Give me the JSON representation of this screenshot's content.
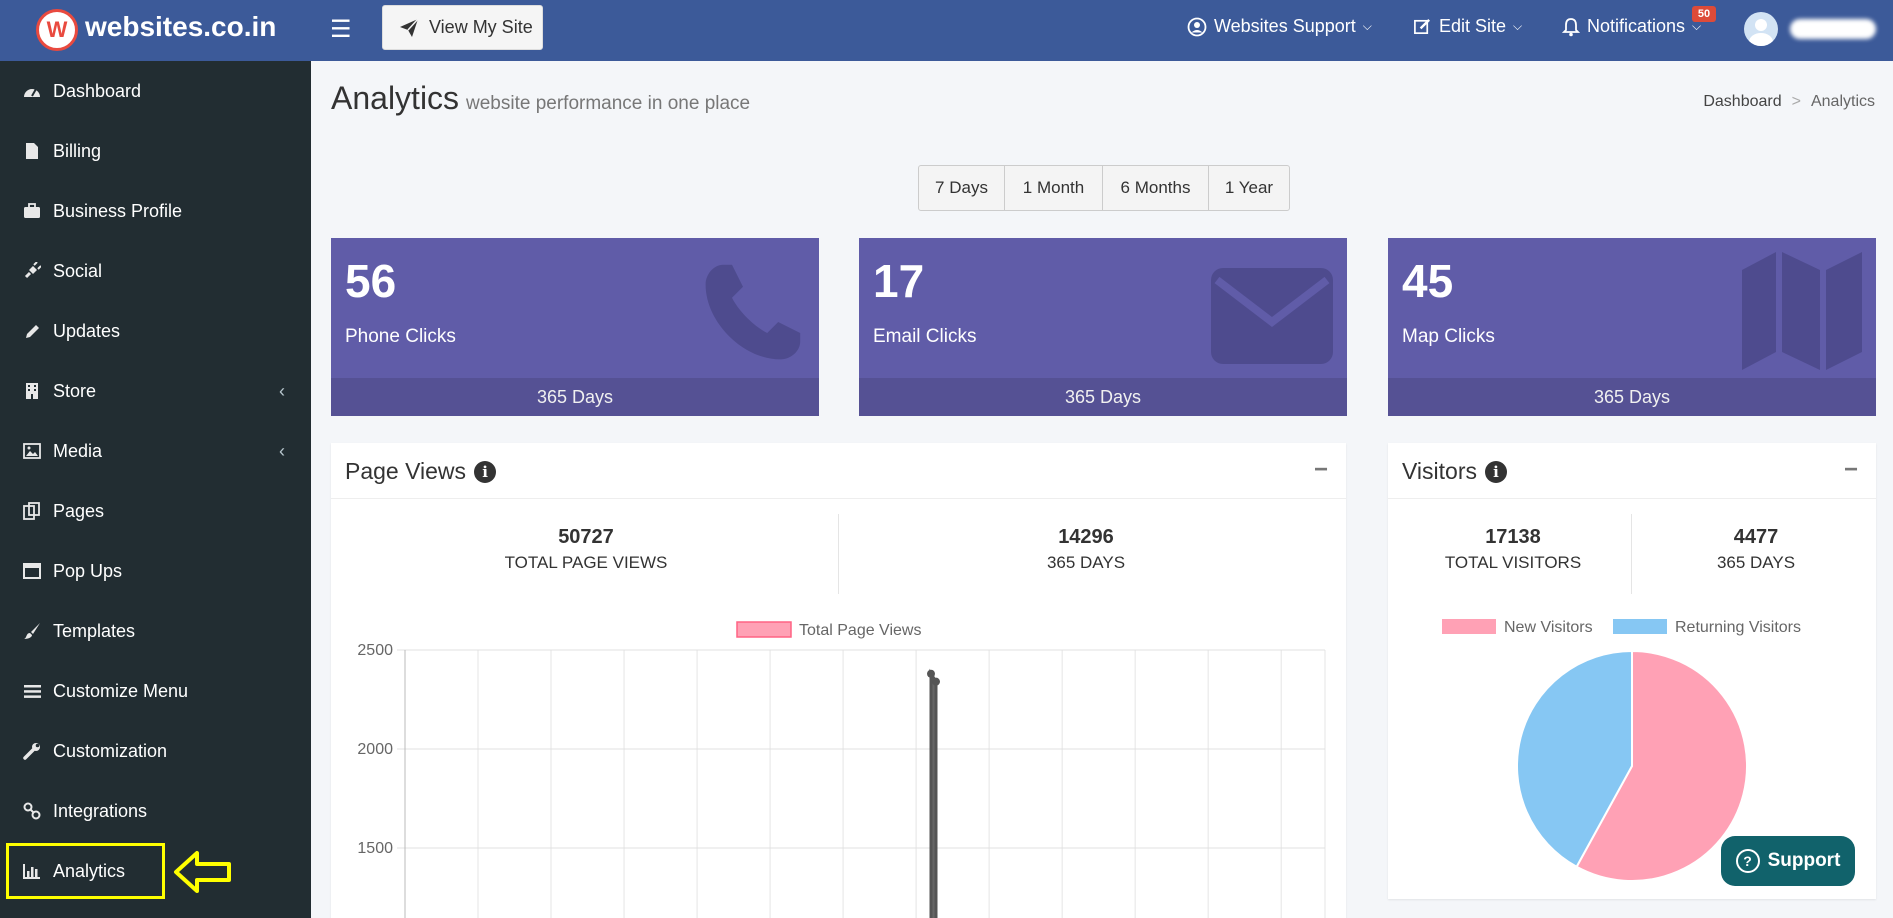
{
  "brand": {
    "name": "websites.co.in",
    "logo_letter": "W"
  },
  "header": {
    "view_site_label": "View My Site",
    "support_label": "Websites Support",
    "edit_label": "Edit Site",
    "notifications_label": "Notifications",
    "notifications_count": "50"
  },
  "sidebar": {
    "items": [
      {
        "label": "Dashboard",
        "icon": "dashboard-icon"
      },
      {
        "label": "Billing",
        "icon": "file-icon"
      },
      {
        "label": "Business Profile",
        "icon": "briefcase-icon"
      },
      {
        "label": "Social",
        "icon": "plug-icon"
      },
      {
        "label": "Updates",
        "icon": "pencil-icon"
      },
      {
        "label": "Store",
        "icon": "building-icon"
      },
      {
        "label": "Media",
        "icon": "image-icon"
      },
      {
        "label": "Pages",
        "icon": "pages-icon"
      },
      {
        "label": "Pop Ups",
        "icon": "window-icon"
      },
      {
        "label": "Templates",
        "icon": "paintbrush-icon"
      },
      {
        "label": "Customize Menu",
        "icon": "list-icon"
      },
      {
        "label": "Customization",
        "icon": "wrench-icon"
      },
      {
        "label": "Integrations",
        "icon": "link-icon"
      },
      {
        "label": "Analytics",
        "icon": "bar-chart-icon"
      }
    ]
  },
  "page": {
    "title": "Analytics",
    "subtitle": "website performance in one place",
    "breadcrumb": {
      "home": "Dashboard",
      "separator": ">",
      "current": "Analytics"
    }
  },
  "ranges": [
    "7 Days",
    "1 Month",
    "6 Months",
    "1 Year"
  ],
  "stats": [
    {
      "value": "56",
      "label": "Phone Clicks",
      "footer": "365 Days",
      "icon": "phone-icon"
    },
    {
      "value": "17",
      "label": "Email Clicks",
      "footer": "365 Days",
      "icon": "envelope-icon"
    },
    {
      "value": "45",
      "label": "Map Clicks",
      "footer": "365 Days",
      "icon": "map-icon"
    }
  ],
  "page_views": {
    "title": "Page Views",
    "total_value": "50727",
    "total_label": "TOTAL PAGE VIEWS",
    "period_value": "14296",
    "period_label": "365 DAYS"
  },
  "visitors": {
    "title": "Visitors",
    "total_value": "17138",
    "total_label": "TOTAL VISITORS",
    "period_value": "4477",
    "period_label": "365 DAYS"
  },
  "support_button": "Support",
  "colors": {
    "header": "#3c5a99",
    "sidebar": "#222d32",
    "stat_box": "#605ca8",
    "pink": "#ffa1b5",
    "blue": "#86c7f3",
    "support": "#11626b"
  },
  "chart_data": [
    {
      "type": "line",
      "legend": [
        "Total Page Views"
      ],
      "y_ticks": [
        2500,
        2000,
        1500
      ],
      "ylim_visible": [
        1100,
        2500
      ],
      "series": [
        {
          "name": "Total Page Views",
          "spike_values": [
            2380,
            2340
          ]
        }
      ],
      "grid": true,
      "legend_position": "top"
    },
    {
      "type": "pie",
      "legend": [
        "New Visitors",
        "Returning Visitors"
      ],
      "slices": [
        {
          "name": "New Visitors",
          "fraction": 0.58
        },
        {
          "name": "Returning Visitors",
          "fraction": 0.42
        }
      ],
      "legend_position": "top"
    }
  ]
}
